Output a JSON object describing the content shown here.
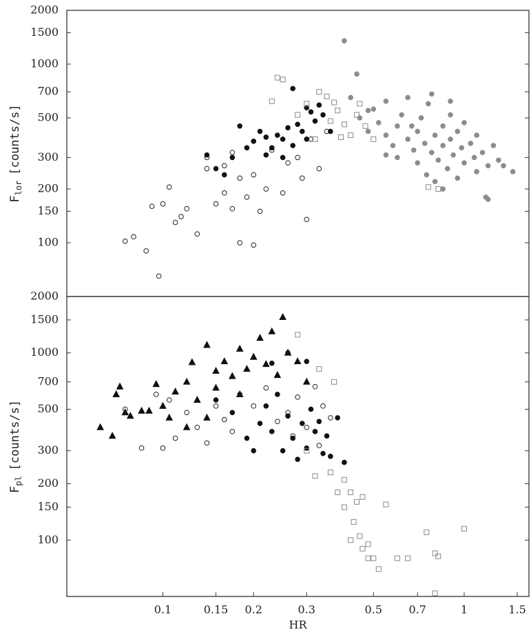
{
  "chart_data": [
    {
      "type": "scatter",
      "ylabel": "F",
      "ylabel_sub": "lor",
      "ylabel_unit": "[counts/s]",
      "log_x": true,
      "log_y": true,
      "xlim": [
        0.048,
        1.64
      ],
      "ylim": [
        50,
        2000
      ],
      "yticks": [
        100,
        150,
        200,
        300,
        500,
        700,
        1000,
        1500,
        2000
      ],
      "series": [
        {
          "marker": "circle",
          "filled": false,
          "color": "#222222",
          "x": [
            0.075,
            0.08,
            0.088,
            0.097,
            0.092,
            0.1,
            0.105,
            0.11,
            0.115,
            0.12,
            0.13,
            0.14,
            0.14,
            0.15,
            0.16,
            0.16,
            0.17,
            0.17,
            0.18,
            0.18,
            0.19,
            0.2,
            0.2,
            0.21,
            0.22,
            0.23,
            0.25,
            0.26,
            0.28,
            0.29,
            0.3,
            0.31,
            0.33,
            0.35
          ],
          "values": [
            102,
            108,
            90,
            65,
            160,
            165,
            205,
            130,
            140,
            155,
            112,
            260,
            300,
            165,
            270,
            190,
            155,
            320,
            100,
            230,
            180,
            240,
            97,
            150,
            200,
            330,
            190,
            280,
            300,
            230,
            135,
            380,
            260,
            420
          ]
        },
        {
          "marker": "circle",
          "filled": true,
          "color": "#111111",
          "x": [
            0.14,
            0.15,
            0.16,
            0.17,
            0.18,
            0.19,
            0.2,
            0.21,
            0.22,
            0.22,
            0.23,
            0.24,
            0.25,
            0.26,
            0.27,
            0.28,
            0.29,
            0.3,
            0.3,
            0.31,
            0.32,
            0.33,
            0.34,
            0.36,
            0.25,
            0.27
          ],
          "values": [
            310,
            260,
            240,
            300,
            450,
            340,
            370,
            420,
            310,
            390,
            340,
            400,
            380,
            440,
            350,
            460,
            420,
            380,
            570,
            540,
            480,
            590,
            520,
            420,
            300,
            730
          ]
        },
        {
          "marker": "square",
          "filled": false,
          "color": "#888888",
          "x": [
            0.24,
            0.25,
            0.23,
            0.3,
            0.33,
            0.35,
            0.38,
            0.4,
            0.42,
            0.44,
            0.36,
            0.39,
            0.32,
            0.28,
            0.45,
            0.47,
            0.76,
            0.82,
            0.5,
            0.37
          ],
          "values": [
            840,
            820,
            620,
            600,
            700,
            660,
            550,
            460,
            400,
            520,
            480,
            390,
            380,
            520,
            600,
            450,
            205,
            200,
            380,
            610
          ]
        },
        {
          "marker": "circle",
          "filled": true,
          "color": "#8c8c8c",
          "x": [
            0.4,
            0.44,
            0.42,
            0.45,
            0.48,
            0.5,
            0.52,
            0.55,
            0.55,
            0.58,
            0.6,
            0.6,
            0.62,
            0.65,
            0.65,
            0.68,
            0.7,
            0.7,
            0.72,
            0.74,
            0.75,
            0.76,
            0.78,
            0.8,
            0.8,
            0.82,
            0.85,
            0.85,
            0.88,
            0.9,
            0.9,
            0.92,
            0.95,
            0.95,
            0.98,
            1.0,
            1.0,
            1.05,
            1.08,
            1.1,
            1.1,
            1.15,
            1.18,
            1.2,
            1.25,
            1.3,
            1.35,
            1.45,
            1.2,
            0.85,
            0.48,
            0.55,
            0.67,
            0.78,
            0.9
          ],
          "values": [
            1350,
            880,
            650,
            500,
            420,
            560,
            470,
            400,
            620,
            350,
            450,
            300,
            520,
            380,
            650,
            330,
            420,
            280,
            500,
            360,
            240,
            600,
            320,
            400,
            220,
            290,
            450,
            350,
            260,
            380,
            520,
            310,
            420,
            230,
            340,
            470,
            280,
            360,
            300,
            250,
            400,
            320,
            180,
            270,
            350,
            290,
            270,
            250,
            175,
            200,
            550,
            310,
            450,
            680,
            620
          ]
        }
      ]
    },
    {
      "type": "scatter",
      "xlabel": "HR",
      "ylabel": "F",
      "ylabel_sub": "pl",
      "ylabel_unit": "[counts/s]",
      "log_x": true,
      "log_y": true,
      "xlim": [
        0.048,
        1.64
      ],
      "ylim": [
        50,
        2000
      ],
      "xticks": [
        0.1,
        0.15,
        0.2,
        0.3,
        0.5,
        0.7,
        1,
        1.5
      ],
      "yticks": [
        100,
        150,
        200,
        300,
        500,
        700,
        1000,
        1500,
        2000
      ],
      "series": [
        {
          "marker": "triangle",
          "filled": true,
          "color": "#111111",
          "x": [
            0.062,
            0.068,
            0.07,
            0.072,
            0.075,
            0.078,
            0.085,
            0.09,
            0.095,
            0.1,
            0.105,
            0.11,
            0.12,
            0.125,
            0.13,
            0.14,
            0.15,
            0.15,
            0.16,
            0.17,
            0.18,
            0.19,
            0.2,
            0.21,
            0.22,
            0.23,
            0.24,
            0.25,
            0.26,
            0.28,
            0.3,
            0.18,
            0.14,
            0.12
          ],
          "values": [
            400,
            360,
            600,
            660,
            480,
            460,
            490,
            490,
            680,
            520,
            450,
            620,
            700,
            890,
            560,
            1100,
            800,
            650,
            900,
            750,
            1050,
            820,
            950,
            1200,
            870,
            1300,
            760,
            1550,
            1000,
            900,
            700,
            600,
            450,
            400
          ]
        },
        {
          "marker": "circle",
          "filled": false,
          "color": "#222222",
          "x": [
            0.075,
            0.085,
            0.095,
            0.1,
            0.105,
            0.11,
            0.12,
            0.13,
            0.14,
            0.15,
            0.16,
            0.17,
            0.18,
            0.2,
            0.22,
            0.24,
            0.26,
            0.28,
            0.3,
            0.32,
            0.34,
            0.36,
            0.33,
            0.27
          ],
          "values": [
            500,
            310,
            600,
            310,
            560,
            350,
            480,
            400,
            330,
            520,
            440,
            380,
            600,
            520,
            650,
            430,
            480,
            580,
            400,
            660,
            520,
            450,
            320,
            360
          ]
        },
        {
          "marker": "circle",
          "filled": true,
          "color": "#111111",
          "x": [
            0.15,
            0.17,
            0.19,
            0.2,
            0.21,
            0.22,
            0.23,
            0.24,
            0.25,
            0.26,
            0.27,
            0.28,
            0.29,
            0.3,
            0.31,
            0.32,
            0.33,
            0.34,
            0.35,
            0.36,
            0.38,
            0.4,
            0.3,
            0.26,
            0.23
          ],
          "values": [
            560,
            480,
            350,
            300,
            420,
            520,
            380,
            600,
            300,
            460,
            350,
            270,
            420,
            310,
            500,
            380,
            430,
            290,
            360,
            280,
            450,
            260,
            900,
            1000,
            880
          ]
        },
        {
          "marker": "square",
          "filled": false,
          "color": "#888888",
          "x": [
            0.28,
            0.33,
            0.37,
            0.3,
            0.32,
            0.36,
            0.4,
            0.42,
            0.44,
            0.38,
            0.4,
            0.45,
            0.42,
            0.46,
            0.48,
            0.5,
            0.52,
            0.55,
            0.6,
            0.65,
            0.75,
            0.8,
            0.82,
            1.0,
            0.8,
            0.43,
            0.46,
            0.48
          ],
          "values": [
            1250,
            820,
            700,
            300,
            220,
            230,
            210,
            180,
            160,
            180,
            150,
            105,
            100,
            90,
            80,
            80,
            70,
            155,
            80,
            80,
            110,
            85,
            82,
            115,
            52,
            125,
            170,
            95
          ]
        }
      ]
    }
  ]
}
